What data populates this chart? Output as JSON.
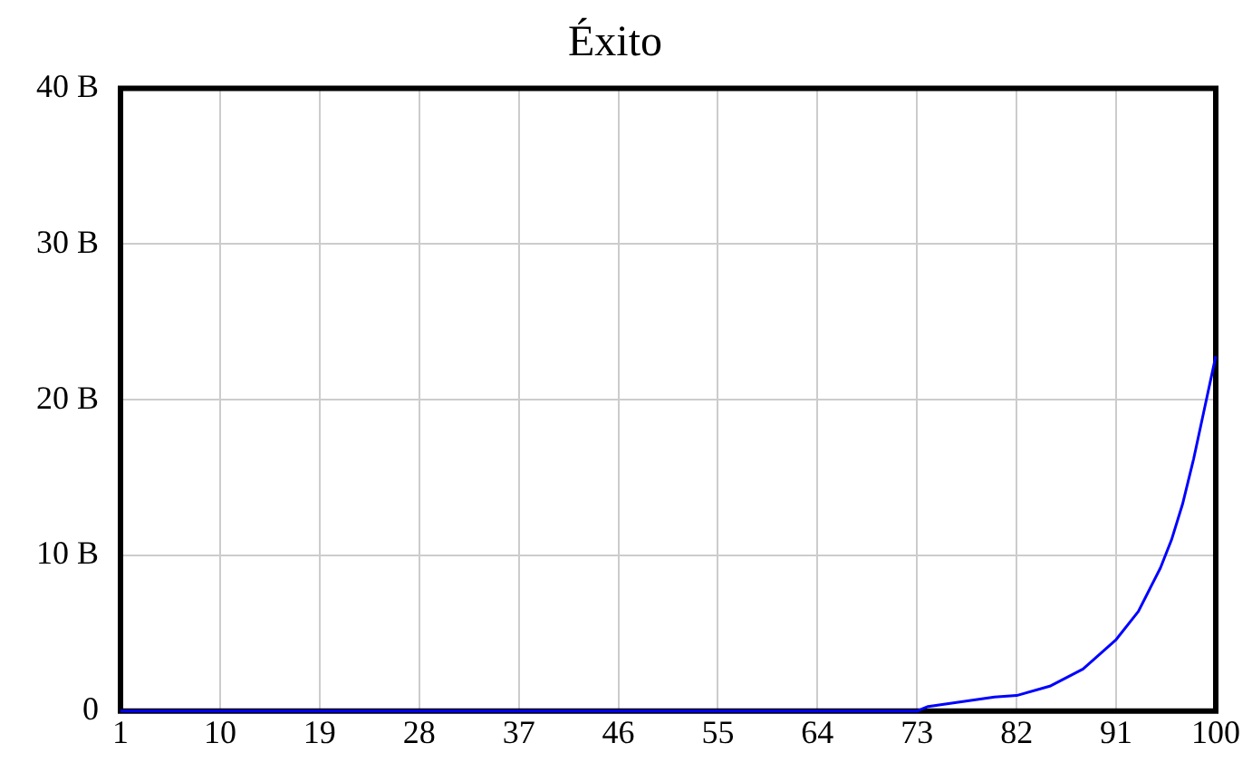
{
  "chart_data": {
    "type": "line",
    "title": "Éxito",
    "x": [
      1,
      73,
      74,
      77,
      80,
      82,
      85,
      88,
      91,
      93,
      95,
      96,
      97,
      98,
      99,
      100
    ],
    "series": [
      {
        "color": "#0000ff",
        "values": [
          0,
          0,
          300000000,
          600000000,
          900000000,
          1000000000,
          1600000000,
          2700000000,
          4600000000,
          6400000000,
          9200000000,
          11000000000,
          13300000000,
          16200000000,
          19500000000,
          22800000000
        ]
      }
    ],
    "xlim": [
      1,
      100
    ],
    "xticks": [
      1,
      10,
      19,
      28,
      37,
      46,
      55,
      64,
      73,
      82,
      91,
      100
    ],
    "ylim": [
      0,
      40000000000
    ],
    "yticks": [
      {
        "value": 0,
        "label": "0"
      },
      {
        "value": 10000000000,
        "label": "10 B"
      },
      {
        "value": 20000000000,
        "label": "20 B"
      },
      {
        "value": 30000000000,
        "label": "30 B"
      },
      {
        "value": 40000000000,
        "label": "40 B"
      }
    ],
    "grid": true,
    "legend": false,
    "marker": "none",
    "line_style": "solid"
  }
}
